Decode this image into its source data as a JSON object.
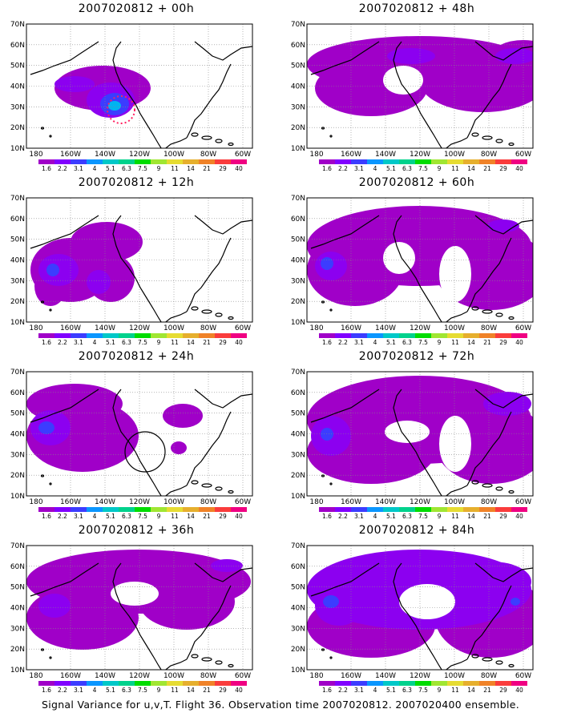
{
  "panels": [
    {
      "title": "2007020812 + 00h",
      "blobs": [
        {
          "x": 95,
          "y": 80,
          "rx": 60,
          "ry": 28,
          "level": 1
        },
        {
          "x": 60,
          "y": 75,
          "rx": 25,
          "ry": 10,
          "level": 2
        },
        {
          "x": 105,
          "y": 95,
          "rx": 30,
          "ry": 22,
          "level": 2
        },
        {
          "x": 110,
          "y": 100,
          "rx": 18,
          "ry": 14,
          "level": 3
        },
        {
          "x": 110,
          "y": 102,
          "rx": 8,
          "ry": 6,
          "level": 4
        }
      ],
      "marker": {
        "type": "dotcircle",
        "x": 118,
        "y": 107,
        "r": 17
      }
    },
    {
      "title": "2007020812 + 48h",
      "blobs": [
        {
          "x": 140,
          "y": 50,
          "rx": 140,
          "ry": 35,
          "level": 1
        },
        {
          "x": 80,
          "y": 80,
          "rx": 70,
          "ry": 35,
          "level": 1
        },
        {
          "x": 220,
          "y": 70,
          "rx": 80,
          "ry": 40,
          "level": 1
        },
        {
          "x": 270,
          "y": 40,
          "rx": 40,
          "ry": 20,
          "level": 1
        },
        {
          "x": 130,
          "y": 40,
          "rx": 30,
          "ry": 10,
          "level": 2
        },
        {
          "x": 260,
          "y": 40,
          "rx": 25,
          "ry": 10,
          "level": 2
        }
      ],
      "holes": [
        {
          "x": 120,
          "y": 70,
          "rx": 25,
          "ry": 18
        }
      ],
      "marker": null
    },
    {
      "title": "2007020812 + 12h",
      "blobs": [
        {
          "x": 55,
          "y": 90,
          "rx": 50,
          "ry": 40,
          "level": 1
        },
        {
          "x": 100,
          "y": 55,
          "rx": 45,
          "ry": 25,
          "level": 1
        },
        {
          "x": 105,
          "y": 100,
          "rx": 30,
          "ry": 30,
          "level": 1
        },
        {
          "x": 30,
          "y": 110,
          "rx": 20,
          "ry": 25,
          "level": 1
        },
        {
          "x": 40,
          "y": 90,
          "rx": 25,
          "ry": 20,
          "level": 2
        },
        {
          "x": 90,
          "y": 105,
          "rx": 15,
          "ry": 15,
          "level": 2
        },
        {
          "x": 33,
          "y": 90,
          "rx": 8,
          "ry": 8,
          "level": 3
        }
      ],
      "marker": null
    },
    {
      "title": "2007020812 + 60h",
      "blobs": [
        {
          "x": 140,
          "y": 60,
          "rx": 140,
          "ry": 50,
          "level": 1
        },
        {
          "x": 60,
          "y": 90,
          "rx": 60,
          "ry": 45,
          "level": 1
        },
        {
          "x": 230,
          "y": 90,
          "rx": 70,
          "ry": 50,
          "level": 1
        },
        {
          "x": 30,
          "y": 85,
          "rx": 20,
          "ry": 18,
          "level": 2
        },
        {
          "x": 245,
          "y": 35,
          "rx": 20,
          "ry": 8,
          "level": 2
        },
        {
          "x": 25,
          "y": 82,
          "rx": 8,
          "ry": 8,
          "level": 3
        }
      ],
      "holes": [
        {
          "x": 115,
          "y": 75,
          "rx": 20,
          "ry": 20
        },
        {
          "x": 185,
          "y": 95,
          "rx": 20,
          "ry": 35
        }
      ],
      "marker": null
    },
    {
      "title": "2007020812 + 24h",
      "blobs": [
        {
          "x": 70,
          "y": 80,
          "rx": 70,
          "ry": 45,
          "level": 1
        },
        {
          "x": 60,
          "y": 40,
          "rx": 60,
          "ry": 25,
          "level": 1
        },
        {
          "x": 195,
          "y": 55,
          "rx": 25,
          "ry": 15,
          "level": 1
        },
        {
          "x": 190,
          "y": 95,
          "rx": 10,
          "ry": 8,
          "level": 1
        },
        {
          "x": 30,
          "y": 70,
          "rx": 25,
          "ry": 22,
          "level": 2
        },
        {
          "x": 25,
          "y": 70,
          "rx": 10,
          "ry": 8,
          "level": 3
        }
      ],
      "marker": {
        "type": "circle",
        "x": 148,
        "y": 100,
        "r": 25
      }
    },
    {
      "title": "2007020812 + 72h",
      "blobs": [
        {
          "x": 140,
          "y": 60,
          "rx": 140,
          "ry": 55,
          "level": 1
        },
        {
          "x": 80,
          "y": 100,
          "rx": 80,
          "ry": 40,
          "level": 1
        },
        {
          "x": 230,
          "y": 90,
          "rx": 70,
          "ry": 50,
          "level": 1
        },
        {
          "x": 30,
          "y": 80,
          "rx": 25,
          "ry": 25,
          "level": 2
        },
        {
          "x": 250,
          "y": 40,
          "rx": 30,
          "ry": 15,
          "level": 2
        },
        {
          "x": 25,
          "y": 78,
          "rx": 8,
          "ry": 8,
          "level": 3
        }
      ],
      "holes": [
        {
          "x": 125,
          "y": 75,
          "rx": 28,
          "ry": 14
        },
        {
          "x": 185,
          "y": 90,
          "rx": 20,
          "ry": 35
        }
      ],
      "marker": null
    },
    {
      "title": "2007020812 + 36h",
      "blobs": [
        {
          "x": 140,
          "y": 45,
          "rx": 140,
          "ry": 40,
          "level": 1
        },
        {
          "x": 70,
          "y": 90,
          "rx": 70,
          "ry": 40,
          "level": 1
        },
        {
          "x": 200,
          "y": 70,
          "rx": 60,
          "ry": 35,
          "level": 1
        },
        {
          "x": 35,
          "y": 75,
          "rx": 20,
          "ry": 15,
          "level": 2
        },
        {
          "x": 250,
          "y": 25,
          "rx": 20,
          "ry": 8,
          "level": 2
        }
      ],
      "holes": [
        {
          "x": 135,
          "y": 60,
          "rx": 30,
          "ry": 15
        }
      ],
      "marker": null
    },
    {
      "title": "2007020812 + 84h",
      "blobs": [
        {
          "x": 140,
          "y": 55,
          "rx": 140,
          "ry": 50,
          "level": 2
        },
        {
          "x": 80,
          "y": 100,
          "rx": 80,
          "ry": 40,
          "level": 1
        },
        {
          "x": 230,
          "y": 90,
          "rx": 70,
          "ry": 50,
          "level": 1
        },
        {
          "x": 40,
          "y": 75,
          "rx": 30,
          "ry": 25,
          "level": 2
        },
        {
          "x": 230,
          "y": 45,
          "rx": 50,
          "ry": 25,
          "level": 2
        },
        {
          "x": 30,
          "y": 70,
          "rx": 10,
          "ry": 8,
          "level": 3
        },
        {
          "x": 260,
          "y": 70,
          "rx": 6,
          "ry": 5,
          "level": 3
        }
      ],
      "holes": [
        {
          "x": 150,
          "y": 70,
          "rx": 35,
          "ry": 22
        }
      ],
      "marker": null
    }
  ],
  "lon_labels": [
    "180",
    "160W",
    "140W",
    "120W",
    "100W",
    "80W",
    "60W"
  ],
  "lat_labels": [
    "70N",
    "60N",
    "50N",
    "40N",
    "30N",
    "20N",
    "10N"
  ],
  "colorbar": {
    "colors": [
      "#a000c8",
      "#8000ff",
      "#3c3cff",
      "#0a96ff",
      "#00c8c8",
      "#00d28c",
      "#00dc00",
      "#a0e632",
      "#e6dc32",
      "#e6af2d",
      "#f08228",
      "#fa3c3c",
      "#f00082"
    ],
    "labels": [
      "1.6",
      "2.2",
      "3.1",
      "4",
      "5.1",
      "6.3",
      "7.5",
      "9",
      "11",
      "14",
      "21",
      "29",
      "40"
    ]
  },
  "level_colors": [
    "#a000c8",
    "#8c00f0",
    "#3c3cff",
    "#00b4f0",
    "#00c8c8"
  ],
  "caption": "Signal Variance for u,v,T. Flight 36. Observation time 2007020812. 2007020400 ensemble."
}
